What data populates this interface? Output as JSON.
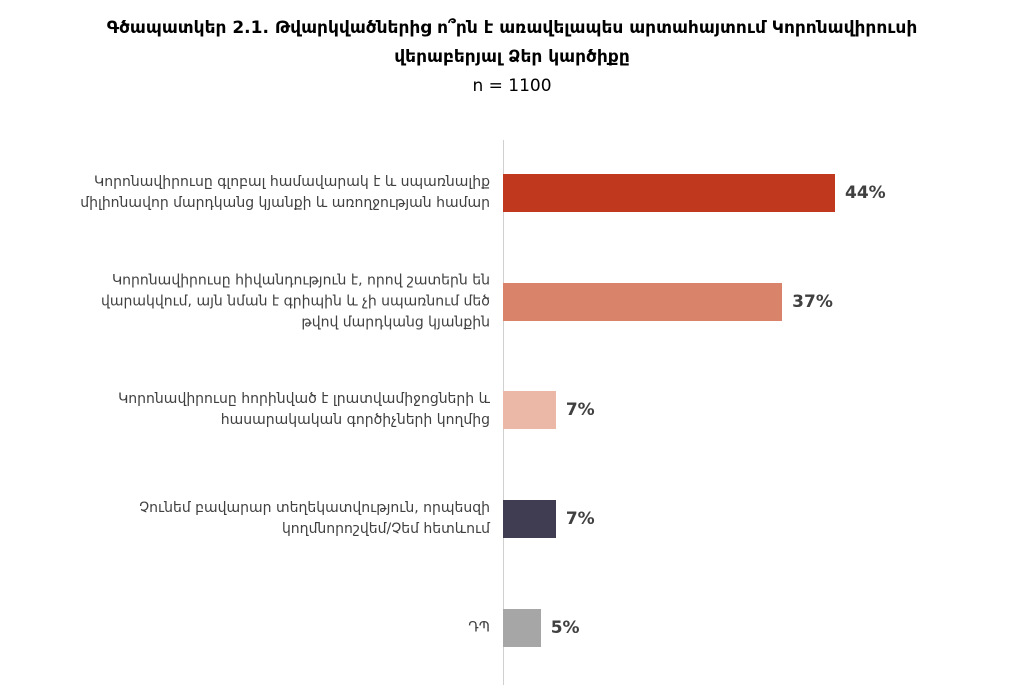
{
  "chart_data": {
    "type": "bar",
    "orientation": "horizontal",
    "title": "Գծապատկեր 2.1. Թվարկվածներից ո՞րն է առավելապես արտահայտում Կորոնավիրուսի վերաբերյալ Ձեր կարծիքը",
    "subtitle": "n = 1100",
    "categories": [
      "Կորոնավիրուսը գլոբալ համավարակ է և սպառնալիք միլիոնավոր մարդկանց կյանքի և առողջության համար",
      "Կորոնավիրուսը հիվանդություն է, որով շատերն են վարակվում, այն նման է գրիպին և չի սպառնում մեծ թվով մարդկանց կյանքին",
      "Կորոնավիրուսը հորինված է լրատվամիջոցների և հասարակական գործիչների կողմից",
      "Չունեմ բավարար տեղեկատվություն, որպեսզի կողմնորոշվեմ/Չեմ հետևում",
      "ԴՊ"
    ],
    "values": [
      44,
      37,
      7,
      7,
      5
    ],
    "value_labels": [
      "44%",
      "37%",
      "7%",
      "7%",
      "5%"
    ],
    "colors": [
      "#c0391f",
      "#d9836b",
      "#ebb8a8",
      "#403c52",
      "#a6a6a6"
    ]
  }
}
